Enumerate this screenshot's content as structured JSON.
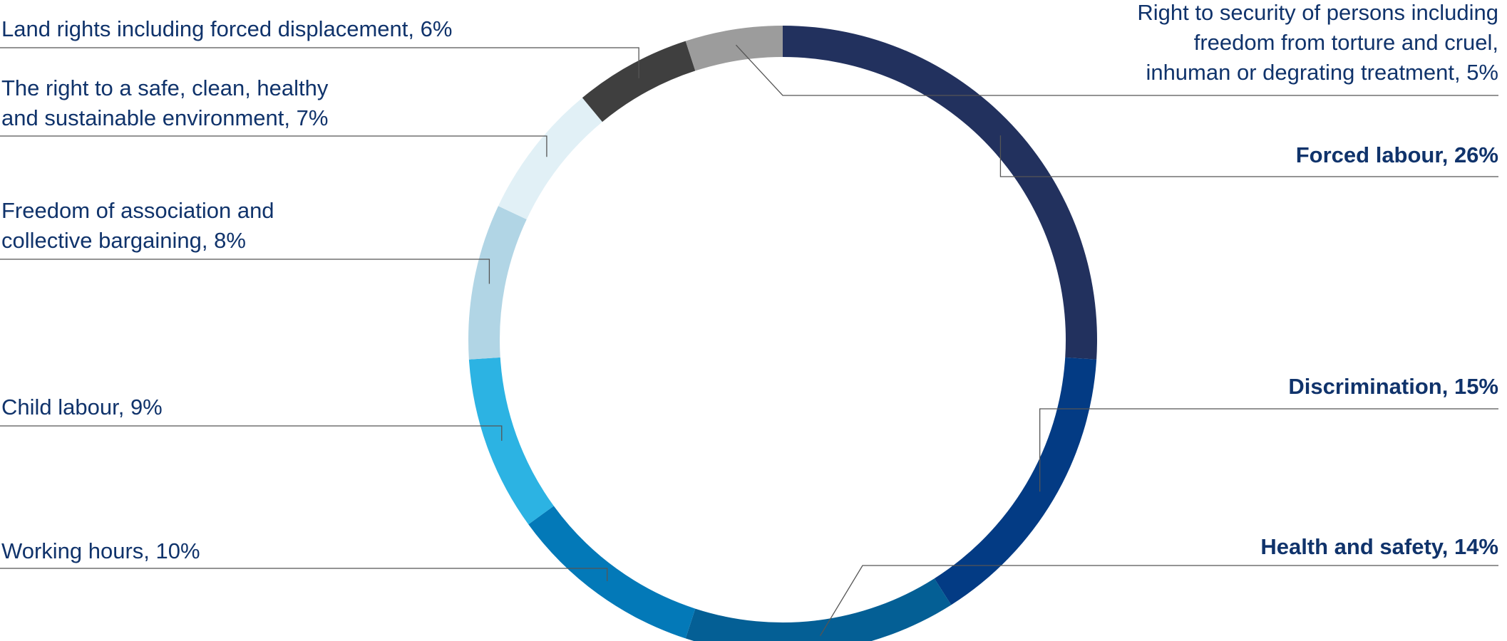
{
  "chart_data": {
    "type": "pie",
    "donut": true,
    "title": "",
    "legend": "none",
    "unit": "%",
    "slices": [
      {
        "label_lines": [
          "Forced labour, 26%"
        ],
        "value": 26,
        "color": "#22315e",
        "bold": true
      },
      {
        "label_lines": [
          "Discrimination, 15%"
        ],
        "value": 15,
        "color": "#033b84",
        "bold": true
      },
      {
        "label_lines": [
          "Health and safety, 14%"
        ],
        "value": 14,
        "color": "#045f95",
        "bold": true
      },
      {
        "label_lines": [
          "Working hours, 10%"
        ],
        "value": 10,
        "color": "#0379b8",
        "bold": false
      },
      {
        "label_lines": [
          "Child labour, 9%"
        ],
        "value": 9,
        "color": "#2cb3e3",
        "bold": false
      },
      {
        "label_lines": [
          "Freedom of association and",
          "collective bargaining, 8%"
        ],
        "value": 8,
        "color": "#b1d5e5",
        "bold": false
      },
      {
        "label_lines": [
          "The right to a safe, clean, healthy",
          "and sustainable environment, 7%"
        ],
        "value": 7,
        "color": "#e1f0f6",
        "bold": false
      },
      {
        "label_lines": [
          "Land rights including forced displacement, 6%"
        ],
        "value": 6,
        "color": "#3f3f3f",
        "bold": false
      },
      {
        "label_lines": [
          "Right to security of persons including",
          "freedom from torture and cruel,",
          "inhuman or degrating treatment, 5%"
        ],
        "value": 5,
        "color": "#9c9c9c",
        "bold": false
      }
    ]
  }
}
